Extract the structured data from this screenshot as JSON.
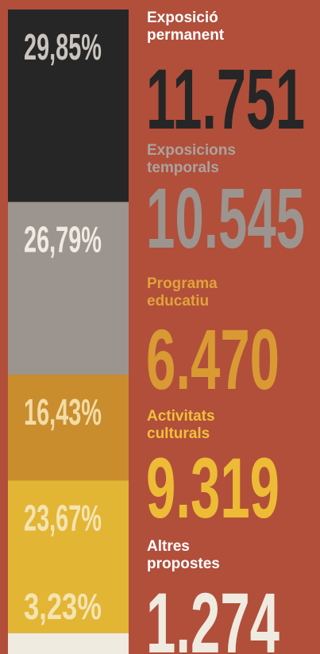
{
  "chart_data": {
    "type": "stacked_bar",
    "background": "#b14f3b",
    "series": [
      {
        "name": "Exposició permanent",
        "color": "#262626",
        "label_color": "#c9c4be",
        "name_color": "#ffffff",
        "count_color": "#262626",
        "values": [
          29.85
        ],
        "value_labels": [
          "29,85%"
        ],
        "counts": [
          11751
        ],
        "count_labels": [
          "11.751"
        ]
      },
      {
        "name": "Exposicions temporals",
        "color": "#9c948f",
        "label_color": "#f0ebe0",
        "name_color": "#aaa39e",
        "count_color": "#9c948f",
        "values": [
          26.79
        ],
        "value_labels": [
          "26,79%"
        ],
        "counts": [
          10545
        ],
        "count_labels": [
          "10.545"
        ]
      },
      {
        "name": "Programa educatiu",
        "color": "#c98d2e",
        "label_color": "#f2dca6",
        "name_color": "#e2a23a",
        "count_color": "#d99a33",
        "values": [
          16.43
        ],
        "value_labels": [
          "16,43%"
        ],
        "counts": [
          6470
        ],
        "count_labels": [
          "6.470"
        ]
      },
      {
        "name": "Activitats culturals",
        "color": "#e3b534",
        "label_color": "#f4e4b2",
        "name_color": "#f0c03a",
        "count_color": "#edbb35",
        "values": [
          23.67
        ],
        "value_labels": [
          "23,67%"
        ],
        "counts": [
          9319
        ],
        "count_labels": [
          "9.319"
        ]
      },
      {
        "name": "Altres propostes",
        "color": "#f0ebe0",
        "label_color": "#f4e4b2",
        "name_color": "#ffffff",
        "count_color": "#f0ebe0",
        "values": [
          3.23
        ],
        "value_labels": [
          "3,23%"
        ],
        "counts": [
          1274
        ],
        "count_labels": [
          "1.274"
        ]
      }
    ]
  }
}
